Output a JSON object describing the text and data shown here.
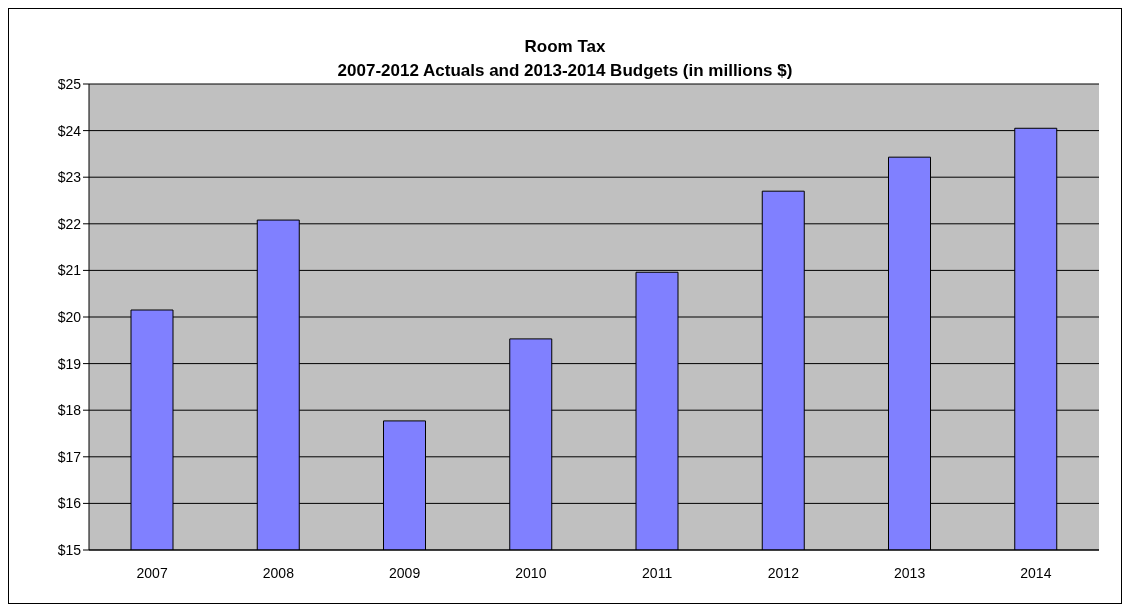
{
  "chart_data": {
    "type": "bar",
    "title": "Room Tax",
    "subtitle": "2007-2012 Actuals and 2013-2014 Budgets (in millions $)",
    "categories": [
      "2007",
      "2008",
      "2009",
      "2010",
      "2011",
      "2012",
      "2013",
      "2014"
    ],
    "values": [
      20.15,
      22.08,
      17.77,
      19.53,
      20.96,
      22.7,
      23.43,
      24.05
    ],
    "color": "#8080ff",
    "ylim": [
      15,
      25
    ],
    "yticks": [
      {
        "value": 15,
        "label": "$15"
      },
      {
        "value": 16,
        "label": "$16"
      },
      {
        "value": 17,
        "label": "$17"
      },
      {
        "value": 18,
        "label": "$18"
      },
      {
        "value": 19,
        "label": "$19"
      },
      {
        "value": 20,
        "label": "$20"
      },
      {
        "value": 21,
        "label": "$21"
      },
      {
        "value": 22,
        "label": "$22"
      },
      {
        "value": 23,
        "label": "$23"
      },
      {
        "value": 24,
        "label": "$24"
      },
      {
        "value": 25,
        "label": "$25"
      }
    ],
    "grid": "y",
    "legend": false
  }
}
